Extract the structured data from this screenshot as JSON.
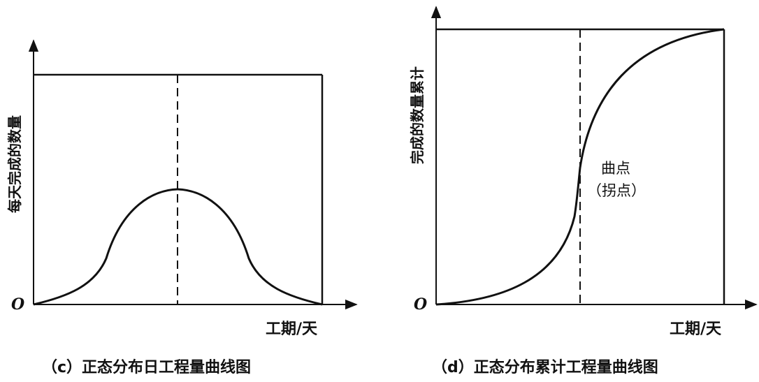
{
  "panels": [
    {
      "id": "c",
      "caption": "（c）正态分布日工程量曲线图",
      "ylabel": "每天完成的数量",
      "xlabel": "工期/天",
      "origin": "O"
    },
    {
      "id": "d",
      "caption": "（d）正态分布累计工程量曲线图",
      "ylabel": "完成的数量累计",
      "xlabel": "工期/天",
      "origin": "O",
      "annotation_line1": "曲点",
      "annotation_line2": "（拐点）"
    }
  ]
}
